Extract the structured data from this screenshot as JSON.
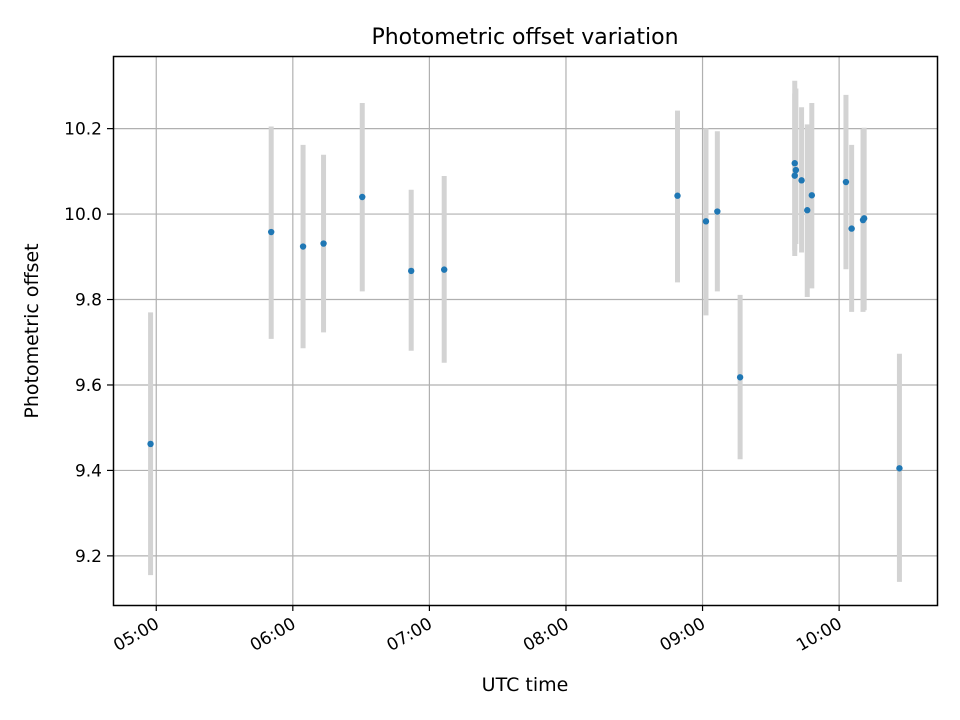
{
  "chart_data": {
    "type": "scatter",
    "title": "Photometric offset variation",
    "xlabel": "UTC time",
    "ylabel": "Photometric offset",
    "xlim": [
      "04:41",
      "10:43"
    ],
    "ylim": [
      9.085,
      10.37
    ],
    "x_ticks": [
      "05:00",
      "06:00",
      "07:00",
      "08:00",
      "09:00",
      "10:00"
    ],
    "y_ticks": [
      "9.2",
      "9.4",
      "9.6",
      "9.8",
      "10.0",
      "10.2"
    ],
    "grid": true,
    "colors": {
      "point": "#1f77b4",
      "errorbar": "#d3d3d3",
      "grid": "#b0b0b0"
    },
    "points": [
      {
        "x": "04:57:30",
        "y": 9.462,
        "err_low": 9.155,
        "err_high": 9.77
      },
      {
        "x": "05:50:30",
        "y": 9.958,
        "err_low": 9.708,
        "err_high": 10.205
      },
      {
        "x": "06:04:30",
        "y": 9.924,
        "err_low": 9.686,
        "err_high": 10.162
      },
      {
        "x": "06:13:30",
        "y": 9.931,
        "err_low": 9.723,
        "err_high": 10.139
      },
      {
        "x": "06:30:30",
        "y": 10.04,
        "err_low": 9.819,
        "err_high": 10.26
      },
      {
        "x": "06:52:00",
        "y": 9.867,
        "err_low": 9.68,
        "err_high": 10.057
      },
      {
        "x": "07:06:30",
        "y": 9.87,
        "err_low": 9.652,
        "err_high": 10.089
      },
      {
        "x": "08:49:00",
        "y": 10.043,
        "err_low": 9.84,
        "err_high": 10.242
      },
      {
        "x": "09:01:30",
        "y": 9.983,
        "err_low": 9.763,
        "err_high": 10.201
      },
      {
        "x": "09:06:30",
        "y": 10.006,
        "err_low": 9.819,
        "err_high": 10.194
      },
      {
        "x": "09:16:30",
        "y": 9.618,
        "err_low": 9.426,
        "err_high": 9.811
      },
      {
        "x": "09:40:30",
        "y": 10.119,
        "err_low": 9.902,
        "err_high": 10.312
      },
      {
        "x": "09:40:30",
        "y": 10.09,
        "err_low": 9.915,
        "err_high": 10.282
      },
      {
        "x": "09:41:00",
        "y": 10.103,
        "err_low": 9.93,
        "err_high": 10.294
      },
      {
        "x": "09:43:30",
        "y": 10.079,
        "err_low": 9.91,
        "err_high": 10.25
      },
      {
        "x": "09:46:00",
        "y": 10.009,
        "err_low": 9.806,
        "err_high": 10.21
      },
      {
        "x": "09:48:00",
        "y": 10.044,
        "err_low": 9.826,
        "err_high": 10.26
      },
      {
        "x": "10:03:00",
        "y": 10.075,
        "err_low": 9.871,
        "err_high": 10.279
      },
      {
        "x": "10:05:30",
        "y": 9.966,
        "err_low": 9.771,
        "err_high": 10.162
      },
      {
        "x": "10:10:30",
        "y": 9.986,
        "err_low": 9.771,
        "err_high": 10.199
      },
      {
        "x": "10:11:00",
        "y": 9.99,
        "err_low": 9.775,
        "err_high": 10.202
      },
      {
        "x": "10:26:30",
        "y": 9.405,
        "err_low": 9.139,
        "err_high": 9.673
      }
    ]
  }
}
